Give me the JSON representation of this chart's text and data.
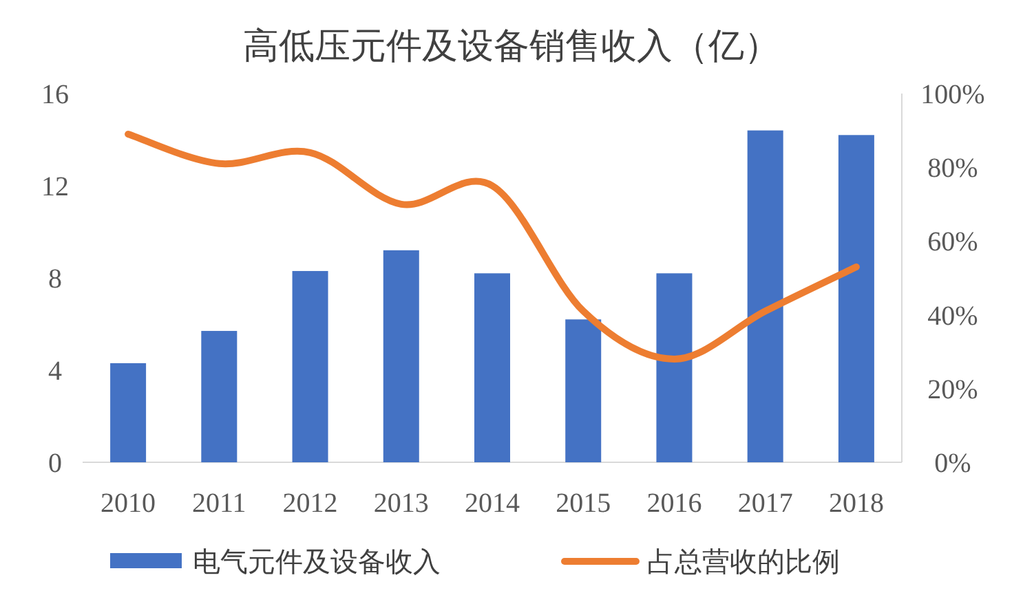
{
  "chart_data": {
    "type": "bar",
    "title": "高低压元件及设备销售收入（亿）",
    "categories": [
      "2010",
      "2011",
      "2012",
      "2013",
      "2014",
      "2015",
      "2016",
      "2017",
      "2018"
    ],
    "series": [
      {
        "name": "电气元件及设备收入",
        "color": "#4472c4",
        "values": [
          4.3,
          5.7,
          8.3,
          9.2,
          8.2,
          6.2,
          8.2,
          14.4,
          14.2
        ]
      },
      {
        "name": "占总营收的比例",
        "type": "line",
        "axis": "y2",
        "color": "#ed7d31",
        "values": [
          89,
          81,
          84,
          70,
          75,
          41,
          28,
          41,
          53
        ]
      }
    ],
    "ylim": [
      0,
      16
    ],
    "yticks": [
      0,
      4,
      8,
      12,
      16
    ],
    "y2lim": [
      0,
      100
    ],
    "y2ticks": [
      {
        "value": 0,
        "label": "0%"
      },
      {
        "value": 20,
        "label": "20%"
      },
      {
        "value": 40,
        "label": "40%"
      },
      {
        "value": 60,
        "label": "60%"
      },
      {
        "value": 80,
        "label": "80%"
      },
      {
        "value": 100,
        "label": "100%"
      }
    ],
    "legend": "bottom",
    "grid": false
  }
}
